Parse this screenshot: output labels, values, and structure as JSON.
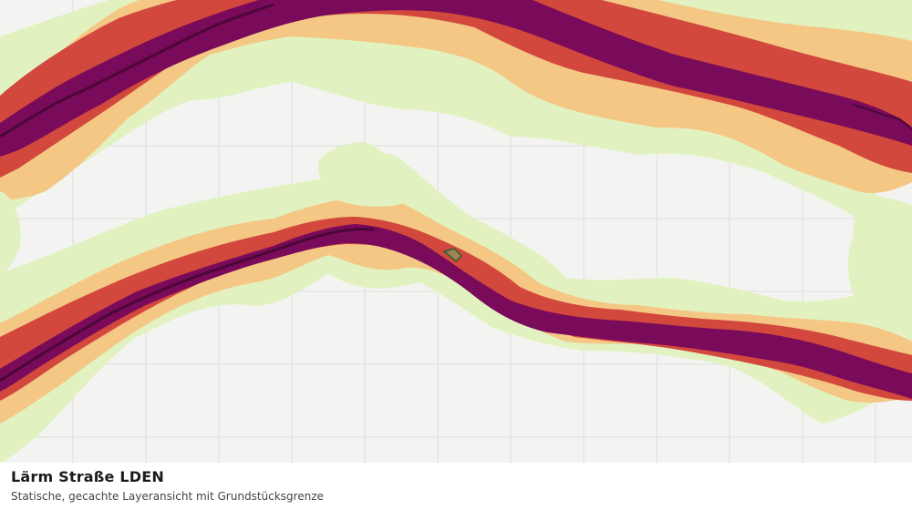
{
  "map": {
    "title": "Lärm Straße LDEN",
    "subtitle": "Statische, gecachte Layeransicht mit Grundstücksgrenze"
  },
  "colors": {
    "background": "#f3f4f2",
    "grid": "#dcdcdc",
    "zone_light": "#e1f2c0",
    "zone_orange": "#f4c785",
    "zone_red": "#d2483d",
    "zone_core": "#7a0a5a",
    "zone_dark_line": "#4a0838",
    "parcel_outline": "#2e5e2e",
    "parcel_fill": "#7fae6a"
  }
}
